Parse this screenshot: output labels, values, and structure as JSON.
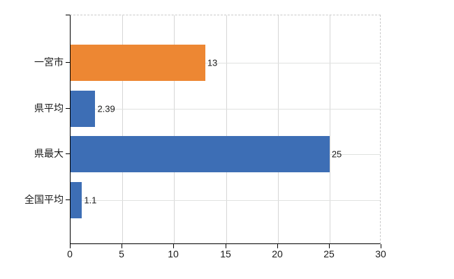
{
  "chart_data": {
    "type": "bar",
    "orientation": "horizontal",
    "title": "",
    "xlabel": "",
    "ylabel": "",
    "categories": [
      "一宮市",
      "県平均",
      "県最大",
      "全国平均"
    ],
    "values": [
      13,
      2.39,
      25,
      1.1
    ],
    "value_labels": [
      "13",
      "2.39",
      "25",
      "1.1"
    ],
    "bar_colors": [
      "#ED8733",
      "#3D6EB5",
      "#3D6EB5",
      "#3D6EB5"
    ],
    "xlim": [
      0,
      30
    ],
    "x_ticks": [
      0,
      5,
      10,
      15,
      20,
      25,
      30
    ],
    "grid": "vertical gridlines at x ticks; faint horizontal line at each category center",
    "legend": null,
    "background": "#ffffff"
  },
  "colors": {
    "orange_bar": "#ED8733",
    "blue_bar": "#3D6EB5",
    "axis": "#000000",
    "gridline": "#d6d6d6",
    "horizontal_gridline": "#e0e2e0",
    "plot_border_dashed": "#c9c9c9",
    "text": "#1a1a1a"
  }
}
